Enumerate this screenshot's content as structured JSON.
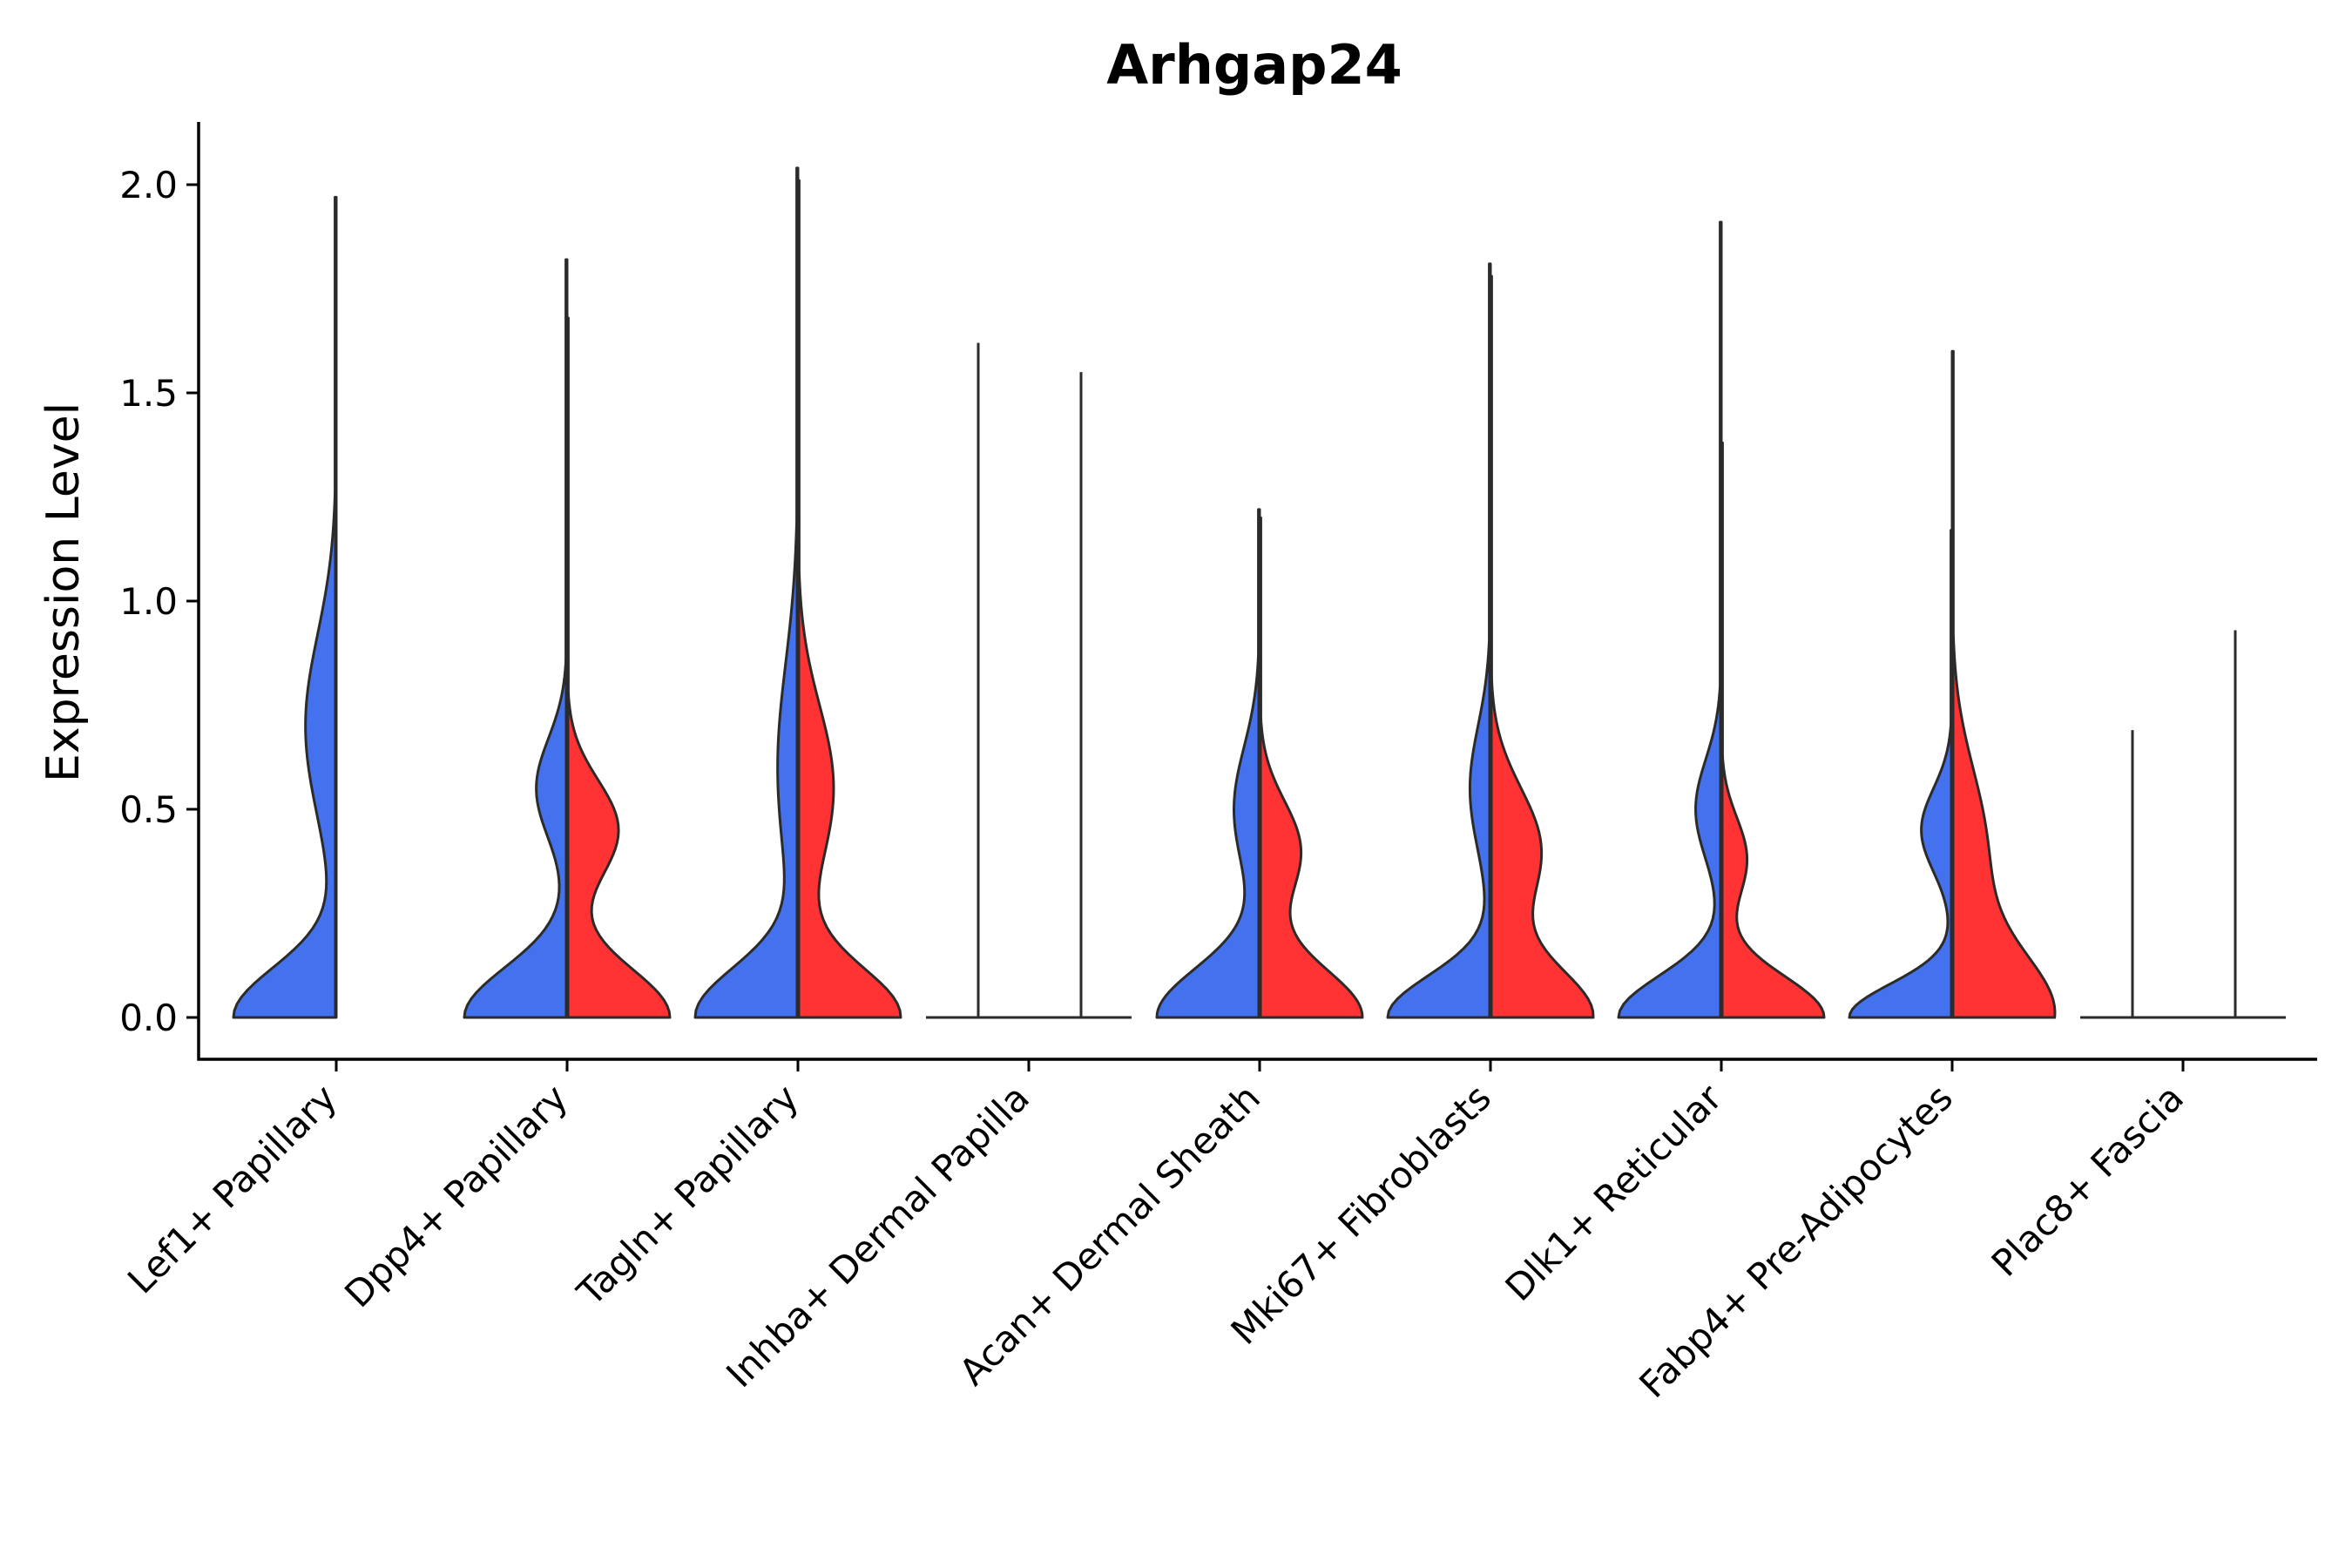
{
  "chart_data": {
    "type": "violin",
    "title": "Arhgap24",
    "xlabel": "",
    "ylabel": "Expression Level",
    "ylim": [
      -0.1,
      2.15
    ],
    "yticks": [
      "0.0",
      "0.5",
      "1.0",
      "1.5",
      "2.0"
    ],
    "yticks_values": [
      0.0,
      0.5,
      1.0,
      1.5,
      2.0
    ],
    "grid": false,
    "legend": "none",
    "split_colors": {
      "left": "#4472ee",
      "right": "#ff3333"
    },
    "categories": [
      {
        "label": "Lef1+ Papillary",
        "max_left": 1.97,
        "max_right": null,
        "left_modes": [
          [
            0.0,
            0.12,
            1.0
          ],
          [
            0.7,
            0.22,
            0.3
          ]
        ],
        "right_modes": []
      },
      {
        "label": "Dpp4+ Papillary",
        "max_left": 1.82,
        "max_right": 1.68,
        "left_modes": [
          [
            0.0,
            0.12,
            1.0
          ],
          [
            0.55,
            0.12,
            0.3
          ]
        ],
        "right_modes": [
          [
            0.0,
            0.12,
            1.0
          ],
          [
            0.45,
            0.12,
            0.5
          ]
        ]
      },
      {
        "label": "Tagln+ Papillary",
        "max_left": 2.04,
        "max_right": 2.01,
        "left_modes": [
          [
            0.0,
            0.12,
            1.0
          ],
          [
            0.6,
            0.25,
            0.2
          ]
        ],
        "right_modes": [
          [
            0.0,
            0.12,
            1.0
          ],
          [
            0.55,
            0.2,
            0.35
          ]
        ]
      },
      {
        "label": "Inhba+ Dermal Papilla",
        "max_left": 1.62,
        "max_right": 1.55,
        "left_modes": [],
        "right_modes": []
      },
      {
        "label": "Acan+ Dermal Sheath",
        "max_left": 1.22,
        "max_right": 1.2,
        "left_modes": [
          [
            0.0,
            0.12,
            1.0
          ],
          [
            0.5,
            0.15,
            0.25
          ]
        ],
        "right_modes": [
          [
            0.0,
            0.12,
            1.0
          ],
          [
            0.4,
            0.12,
            0.4
          ]
        ]
      },
      {
        "label": "Mki67+ Fibroblasts",
        "max_left": 1.81,
        "max_right": 1.78,
        "left_modes": [
          [
            0.0,
            0.1,
            1.0
          ],
          [
            0.55,
            0.15,
            0.2
          ]
        ],
        "right_modes": [
          [
            0.0,
            0.12,
            1.0
          ],
          [
            0.4,
            0.15,
            0.5
          ]
        ]
      },
      {
        "label": "Dlk1+ Reticular",
        "max_left": 1.91,
        "max_right": 1.38,
        "left_modes": [
          [
            0.0,
            0.1,
            1.0
          ],
          [
            0.5,
            0.12,
            0.25
          ]
        ],
        "right_modes": [
          [
            0.0,
            0.1,
            1.0
          ],
          [
            0.38,
            0.1,
            0.25
          ]
        ]
      },
      {
        "label": "Fabp4+ Pre-Adipocytes",
        "max_left": 1.17,
        "max_right": 1.6,
        "left_modes": [
          [
            0.0,
            0.08,
            1.0
          ],
          [
            0.45,
            0.1,
            0.3
          ]
        ],
        "right_modes": [
          [
            0.0,
            0.15,
            1.0
          ],
          [
            0.4,
            0.2,
            0.35
          ]
        ]
      },
      {
        "label": "Plac8+ Fascia",
        "max_left": 0.69,
        "max_right": 0.93,
        "left_modes": [],
        "right_modes": []
      }
    ]
  }
}
